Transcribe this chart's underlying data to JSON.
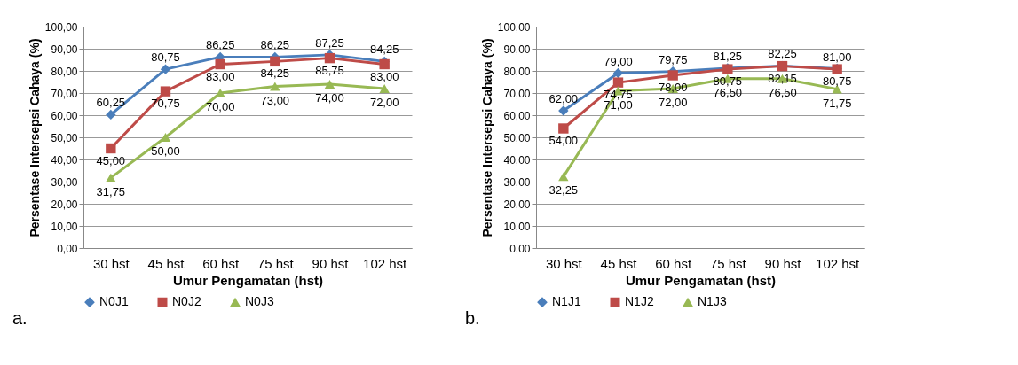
{
  "chart_data": [
    {
      "type": "line",
      "xlabel": "Umur Pengamatan (hst)",
      "ylabel": "Persentase Intersepsi Cahaya (%)",
      "categories": [
        "30 hst",
        "45 hst",
        "60 hst",
        "75 hst",
        "90 hst",
        "102 hst"
      ],
      "series": [
        {
          "name": "N0J1",
          "color": "#4a7ebb",
          "marker": "diamond",
          "values": [
            60.25,
            80.75,
            86.25,
            86.25,
            87.25,
            84.25
          ],
          "value_labels": [
            "60,25",
            "80,75",
            "86,25",
            "86,25",
            "87,25",
            "84,25"
          ]
        },
        {
          "name": "N0J2",
          "color": "#be4b48",
          "marker": "square",
          "values": [
            45,
            70.75,
            83,
            84.25,
            85.75,
            83
          ],
          "value_labels": [
            "45,00",
            "70,75",
            "83,00",
            "84,25",
            "85,75",
            "83,00"
          ]
        },
        {
          "name": "N0J3",
          "color": "#98b954",
          "marker": "triangle",
          "values": [
            31.75,
            50,
            70,
            73,
            74,
            72
          ],
          "value_labels": [
            "31,75",
            "50,00",
            "70,00",
            "73,00",
            "74,00",
            "72,00"
          ]
        }
      ],
      "ylim": [
        0,
        100
      ],
      "yticks": [
        {
          "value": 0,
          "label": "0,00"
        },
        {
          "value": 10,
          "label": "10,00"
        },
        {
          "value": 20,
          "label": "20,00"
        },
        {
          "value": 30,
          "label": "30,00"
        },
        {
          "value": 40,
          "label": "40,00"
        },
        {
          "value": 50,
          "label": "50,00"
        },
        {
          "value": 60,
          "label": "60,00"
        },
        {
          "value": 70,
          "label": "70,00"
        },
        {
          "value": 80,
          "label": "80,00"
        },
        {
          "value": 90,
          "label": "90,00"
        },
        {
          "value": 100,
          "label": "100,00"
        }
      ],
      "grid": "y",
      "legend": "bottom",
      "annotations": [
        "a."
      ]
    },
    {
      "type": "line",
      "xlabel": "Umur Pengamatan (hst)",
      "ylabel": "Persentase Intersepsi Cahaya (%)",
      "categories": [
        "30 hst",
        "45 hst",
        "60 hst",
        "75 hst",
        "90 hst",
        "102 hst"
      ],
      "series": [
        {
          "name": "N1J1",
          "color": "#4a7ebb",
          "marker": "diamond",
          "values": [
            62,
            79,
            79.75,
            81.25,
            82.25,
            81
          ],
          "value_labels": [
            "62,00",
            "79,00",
            "79,75",
            "81,25",
            "82,25",
            "81,00"
          ]
        },
        {
          "name": "N1J2",
          "color": "#be4b48",
          "marker": "square",
          "values": [
            54,
            74.75,
            78,
            80.75,
            82.15,
            80.75
          ],
          "value_labels": [
            "54,00",
            "74,75",
            "78,00",
            "80,75",
            "82,15",
            "80,75"
          ]
        },
        {
          "name": "N1J3",
          "color": "#98b954",
          "marker": "triangle",
          "values": [
            32.25,
            71,
            72,
            76.5,
            76.5,
            71.75
          ],
          "value_labels": [
            "32,25",
            "71,00",
            "72,00",
            "76,50",
            "76,50",
            "71,75"
          ]
        }
      ],
      "ylim": [
        0,
        100
      ],
      "yticks": [
        {
          "value": 0,
          "label": "0,00"
        },
        {
          "value": 10,
          "label": "10,00"
        },
        {
          "value": 20,
          "label": "20,00"
        },
        {
          "value": 30,
          "label": "30,00"
        },
        {
          "value": 40,
          "label": "40,00"
        },
        {
          "value": 50,
          "label": "50,00"
        },
        {
          "value": 60,
          "label": "60,00"
        },
        {
          "value": 70,
          "label": "70,00"
        },
        {
          "value": 80,
          "label": "80,00"
        },
        {
          "value": 90,
          "label": "90,00"
        },
        {
          "value": 100,
          "label": "100,00"
        }
      ],
      "grid": "y",
      "legend": "bottom",
      "annotations": [
        "b."
      ]
    }
  ]
}
